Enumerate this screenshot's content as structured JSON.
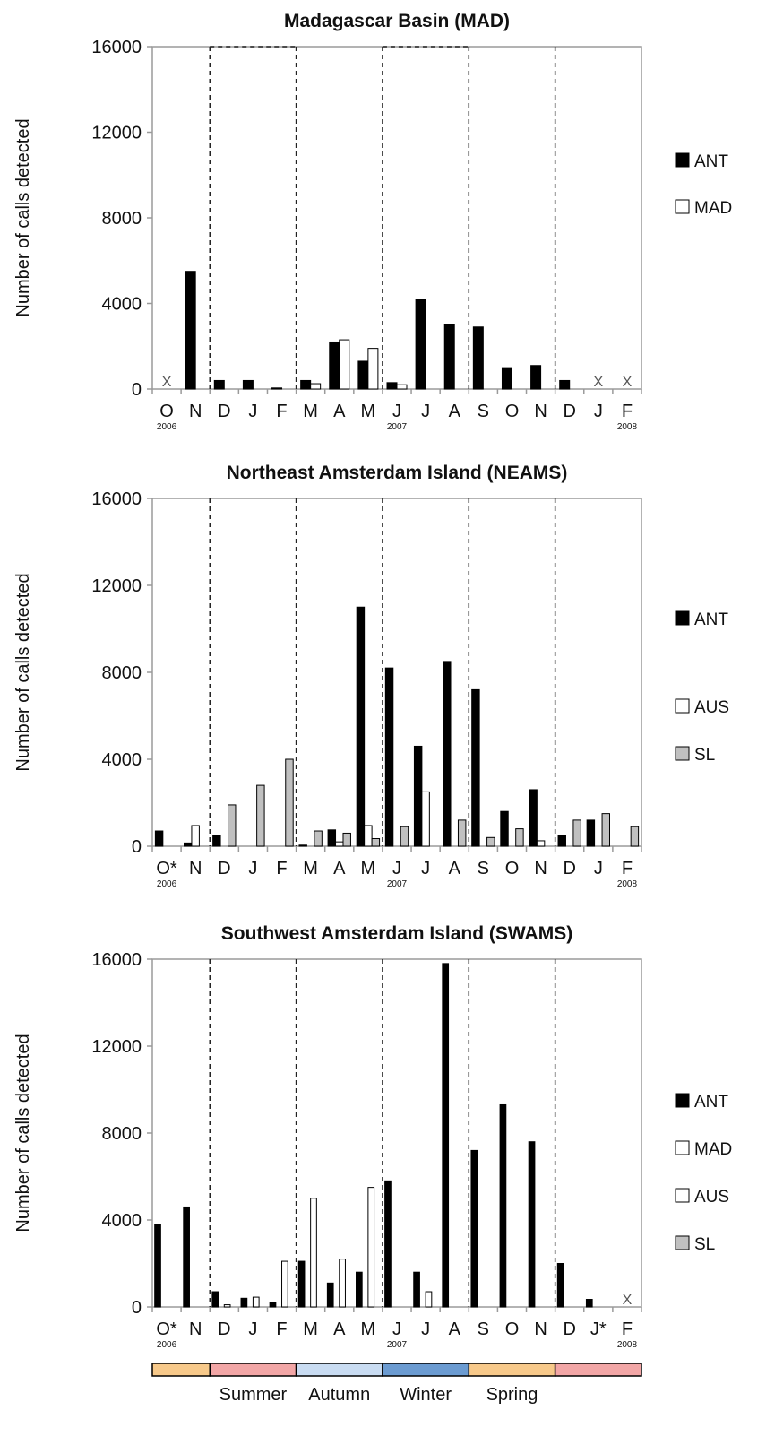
{
  "chart_data": [
    {
      "type": "bar",
      "title": "Madagascar Basin (MAD)",
      "ylabel": "Number of calls detected",
      "xlabel": "",
      "ylim": [
        0,
        16000
      ],
      "yticks": [
        0,
        4000,
        8000,
        12000,
        16000
      ],
      "categories": [
        "O",
        "N",
        "D",
        "J",
        "F",
        "M",
        "A",
        "M",
        "J",
        "J",
        "A",
        "S",
        "O",
        "N",
        "D",
        "J",
        "F"
      ],
      "year_labels": [
        {
          "index": 0,
          "text": "2006"
        },
        {
          "index": 8,
          "text": "2007"
        },
        {
          "index": 16,
          "text": "2008"
        }
      ],
      "no_data_markers": [
        0,
        15,
        16
      ],
      "no_data_symbol": "X",
      "grid": false,
      "legend_position": "right",
      "series": [
        {
          "name": "ANT",
          "color": "#000000",
          "values": [
            0,
            5500,
            400,
            400,
            50,
            400,
            2200,
            1300,
            300,
            4200,
            3000,
            2900,
            1000,
            1100,
            400,
            0,
            0
          ]
        },
        {
          "name": "MAD",
          "color": "#ffffff",
          "values": [
            0,
            0,
            0,
            0,
            0,
            250,
            2300,
            1900,
            200,
            0,
            0,
            0,
            0,
            0,
            0,
            0,
            0
          ]
        }
      ],
      "dashed_dividers": [
        2,
        5,
        8,
        11,
        14
      ],
      "dashed_boxes": [
        [
          2,
          5
        ],
        [
          8,
          11
        ]
      ]
    },
    {
      "type": "bar",
      "title": "Northeast Amsterdam Island (NEAMS)",
      "ylabel": "Number of calls detected",
      "xlabel": "",
      "ylim": [
        0,
        16000
      ],
      "yticks": [
        0,
        4000,
        8000,
        12000,
        16000
      ],
      "categories": [
        "O*",
        "N",
        "D",
        "J",
        "F",
        "M",
        "A",
        "M",
        "J",
        "J",
        "A",
        "S",
        "O",
        "N",
        "D",
        "J",
        "F"
      ],
      "year_labels": [
        {
          "index": 0,
          "text": "2006"
        },
        {
          "index": 8,
          "text": "2007"
        },
        {
          "index": 16,
          "text": "2008"
        }
      ],
      "no_data_markers": [],
      "no_data_symbol": "",
      "grid": false,
      "legend_position": "right",
      "series": [
        {
          "name": "ANT",
          "color": "#000000",
          "values": [
            700,
            150,
            500,
            0,
            0,
            50,
            750,
            11000,
            8200,
            4600,
            8500,
            7200,
            1600,
            2600,
            500,
            1200,
            0
          ]
        },
        {
          "name": "AUS",
          "color": "#ffffff",
          "values": [
            0,
            950,
            0,
            0,
            0,
            0,
            200,
            950,
            0,
            2500,
            0,
            0,
            0,
            250,
            0,
            0,
            0
          ]
        },
        {
          "name": "SL",
          "color": "#c0c0c0",
          "values": [
            0,
            0,
            1900,
            2800,
            4000,
            700,
            600,
            350,
            900,
            0,
            1200,
            400,
            800,
            0,
            1200,
            1500,
            900
          ]
        }
      ],
      "dashed_dividers": [
        2,
        5,
        8,
        11,
        14
      ],
      "dashed_boxes": []
    },
    {
      "type": "bar",
      "title": "Southwest Amsterdam Island (SWAMS)",
      "ylabel": "Number of calls detected",
      "xlabel": "",
      "ylim": [
        0,
        16000
      ],
      "yticks": [
        0,
        4000,
        8000,
        12000,
        16000
      ],
      "categories": [
        "O*",
        "N",
        "D",
        "J",
        "F",
        "M",
        "A",
        "M",
        "J",
        "J",
        "A",
        "S",
        "O",
        "N",
        "D",
        "J*",
        "F"
      ],
      "year_labels": [
        {
          "index": 0,
          "text": "2006"
        },
        {
          "index": 8,
          "text": "2007"
        },
        {
          "index": 16,
          "text": "2008"
        }
      ],
      "no_data_markers": [
        16
      ],
      "no_data_symbol": "X",
      "grid": false,
      "legend_position": "right",
      "series": [
        {
          "name": "ANT",
          "color": "#000000",
          "values": [
            3800,
            4600,
            700,
            400,
            200,
            2100,
            1100,
            1600,
            5800,
            1600,
            15800,
            7200,
            9300,
            7600,
            2000,
            350,
            0
          ]
        },
        {
          "name": "MAD",
          "color": "#ffffff",
          "values": [
            0,
            0,
            0,
            0,
            0,
            0,
            0,
            0,
            0,
            0,
            0,
            0,
            0,
            0,
            0,
            0,
            0
          ]
        },
        {
          "name": "AUS",
          "color": "#ffffff",
          "values": [
            0,
            0,
            100,
            450,
            2100,
            5000,
            2200,
            5500,
            0,
            700,
            0,
            0,
            0,
            0,
            0,
            0,
            0
          ]
        },
        {
          "name": "SL",
          "color": "#c0c0c0",
          "values": [
            0,
            0,
            0,
            0,
            0,
            0,
            0,
            0,
            0,
            0,
            0,
            0,
            0,
            0,
            0,
            0,
            0
          ]
        }
      ],
      "dashed_dividers": [
        2,
        5,
        8,
        11,
        14
      ],
      "dashed_boxes": []
    }
  ],
  "seasons": [
    {
      "label": "Summer",
      "color": "#f2a6a6",
      "span": [
        2,
        5
      ]
    },
    {
      "label": "Autumn",
      "color": "#c9dcf2",
      "span": [
        5,
        8
      ]
    },
    {
      "label": "Winter",
      "color": "#6b9bd1",
      "span": [
        8,
        11
      ]
    },
    {
      "label": "Spring",
      "color": "#f7c98a",
      "span": [
        11,
        14
      ]
    },
    {
      "label": "",
      "color": "#f7c98a",
      "span": [
        0,
        2
      ]
    },
    {
      "label": "",
      "color": "#f2a6a6",
      "span": [
        14,
        17
      ]
    }
  ]
}
